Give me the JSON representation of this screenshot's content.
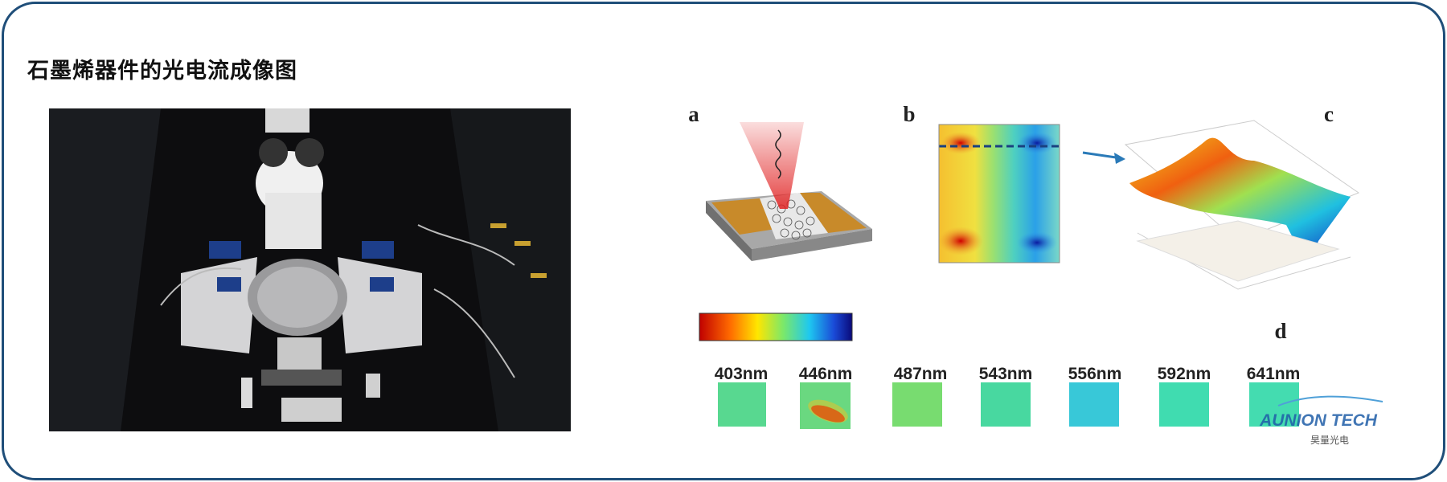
{
  "title": "石墨烯器件的光电流成像图",
  "figure": {
    "panel_labels": [
      "a",
      "b",
      "c",
      "d"
    ],
    "wavelengths": [
      "403nm",
      "446nm",
      "487nm",
      "543nm",
      "556nm",
      "592nm",
      "641nm"
    ],
    "logo": {
      "name": "AUNION TECH",
      "subtitle": "昊量光电"
    }
  }
}
